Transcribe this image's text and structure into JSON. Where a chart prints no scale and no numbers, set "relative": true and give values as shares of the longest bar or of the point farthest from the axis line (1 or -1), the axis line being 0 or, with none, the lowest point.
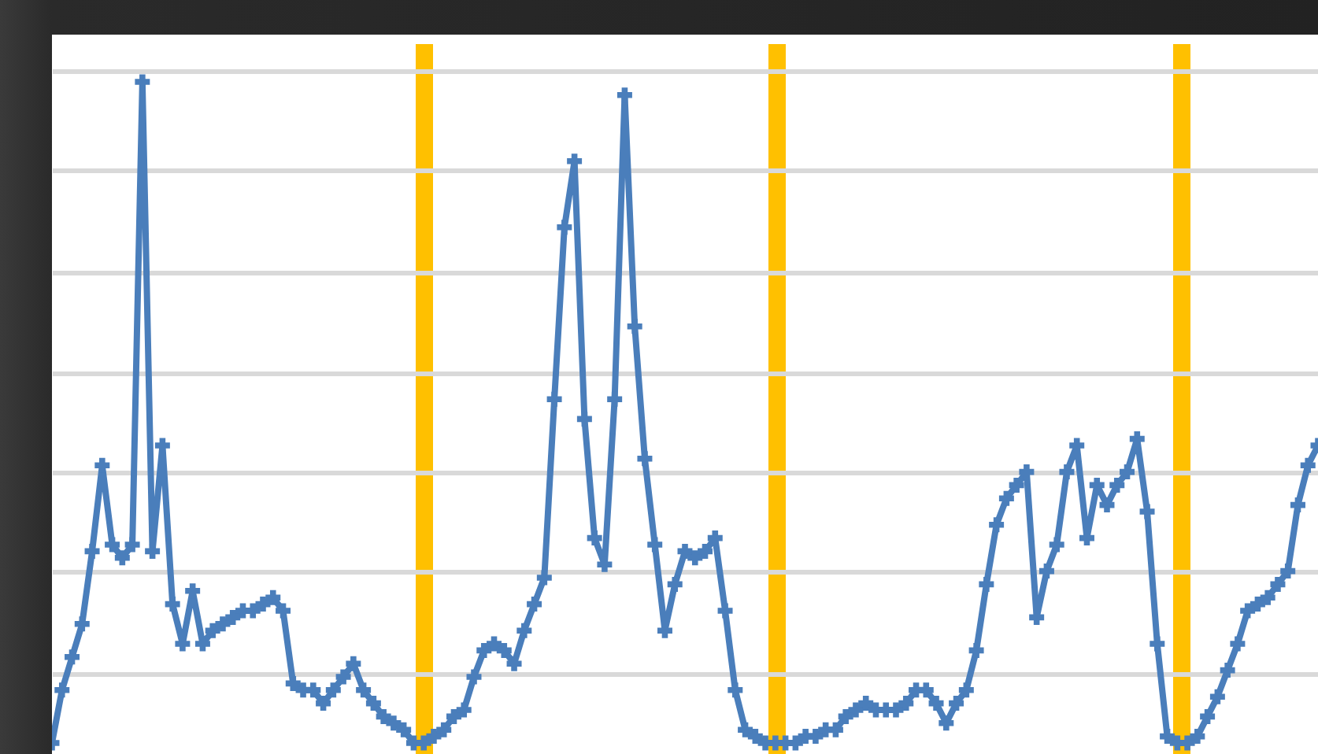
{
  "chart_data": {
    "type": "line",
    "relative": true,
    "grid": true,
    "marker": "cross",
    "line_style": "solid",
    "categories": [
      null,
      null,
      null,
      null,
      null,
      null,
      null,
      null,
      null,
      null,
      null,
      null,
      null,
      null,
      null,
      null,
      null,
      null,
      null,
      null,
      null,
      null,
      null,
      null,
      null,
      null,
      null,
      null,
      null,
      null,
      null,
      null,
      null,
      null,
      null,
      null,
      null,
      null,
      null,
      null,
      null,
      null,
      null,
      null,
      null,
      null,
      null,
      null,
      null,
      null,
      null,
      null,
      null,
      null,
      null,
      null,
      null,
      null,
      null,
      null,
      null,
      null,
      null,
      null,
      null,
      null,
      null,
      null,
      null,
      null,
      null,
      null,
      null,
      null,
      null,
      null,
      null,
      null,
      null,
      null,
      null,
      null,
      null,
      null,
      null,
      null,
      null,
      null,
      null,
      null,
      null,
      null,
      null,
      null,
      null,
      null,
      null,
      null,
      null,
      null,
      null,
      null,
      null,
      null,
      null,
      null,
      null,
      null,
      null,
      null,
      null,
      null,
      null,
      null,
      null,
      null,
      null,
      null,
      null,
      null,
      null,
      null,
      null,
      null,
      null,
      null,
      null
    ],
    "series": [
      {
        "color": "#4a7ebb",
        "values": [
          0.0,
          0.08,
          0.13,
          0.18,
          0.29,
          0.42,
          0.3,
          0.28,
          0.3,
          1,
          0.29,
          0.45,
          0.21,
          0.15,
          0.23,
          0.15,
          0.17,
          0.18,
          0.19,
          0.2,
          0.2,
          0.21,
          0.22,
          0.2,
          0.09,
          0.08,
          0.08,
          0.06,
          0.08,
          0.1,
          0.12,
          0.08,
          0.06,
          0.04,
          0.03,
          0.02,
          0.0,
          0,
          0.01,
          0.02,
          0.04,
          0.05,
          0.1,
          0.14,
          0.15,
          0.14,
          0.12,
          0.17,
          0.21,
          0.25,
          0.52,
          0.78,
          0.88,
          0.49,
          0.31,
          0.27,
          0.52,
          0.98,
          0.63,
          0.43,
          0.3,
          0.17,
          0.24,
          0.29,
          0.28,
          0.29,
          0.31,
          0.2,
          0.08,
          0.02,
          0.01,
          0.0,
          0,
          0.0,
          0.0,
          0.01,
          0.01,
          0.02,
          0.02,
          0.04,
          0.05,
          0.06,
          0.05,
          0.05,
          0.05,
          0.06,
          0.08,
          0.08,
          0.06,
          0.03,
          0.06,
          0.08,
          0.14,
          0.24,
          0.33,
          0.37,
          0.39,
          0.41,
          0.19,
          0.26,
          0.3,
          0.41,
          0.45,
          0.31,
          0.39,
          0.36,
          0.39,
          0.41,
          0.46,
          0.35,
          0.15,
          0.01,
          0,
          0.0,
          0.01,
          0.04,
          0.07,
          0.11,
          0.15,
          0.2,
          0.21,
          0.22,
          0.24,
          0.26,
          0.36,
          0.42,
          0.45
        ]
      }
    ]
  }
}
